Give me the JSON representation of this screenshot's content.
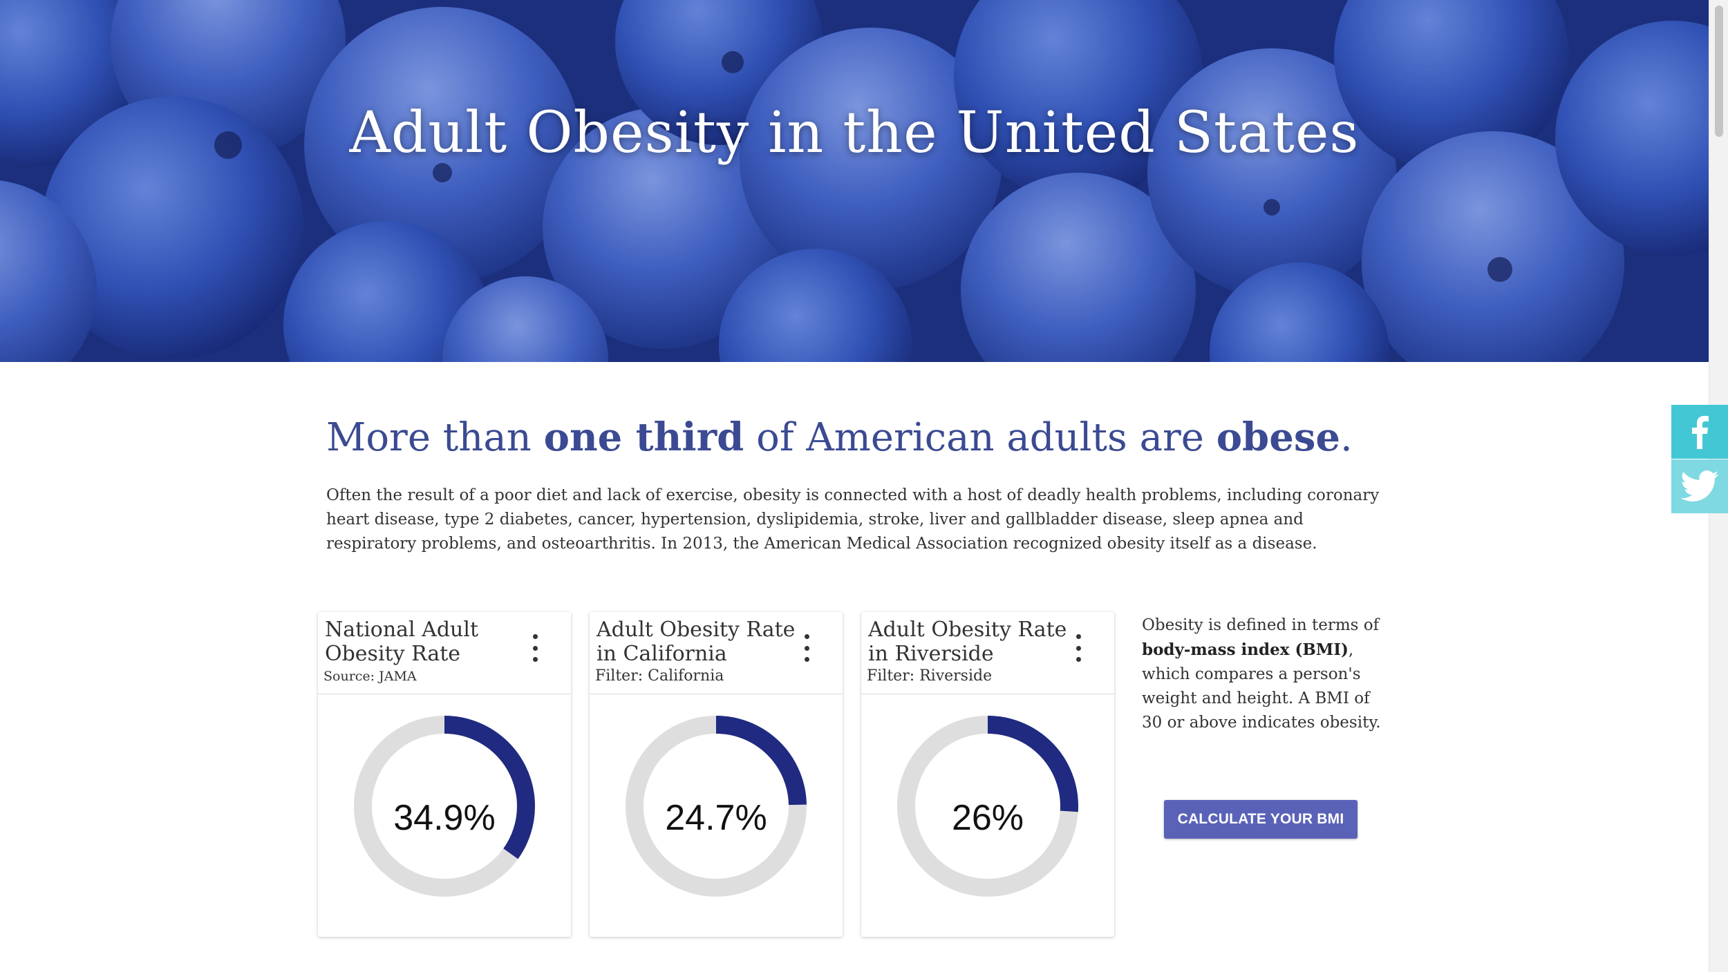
{
  "hero": {
    "title": "Adult Obesity in the United States",
    "image": "blueberries-background"
  },
  "headline": {
    "part1": "More than ",
    "bold1": "one third",
    "part2": " of American adults are ",
    "bold2": "obese",
    "part3": "."
  },
  "intro": {
    "text": "Often the result of a poor diet and lack of exercise, obesity is connected with a host of deadly health problems, including coronary heart disease, type 2 diabetes, cancer, hypertension, dyslipidemia, stroke, liver and gallbladder disease, sleep apnea and respiratory problems, and osteoarthritis. In 2013, the American Medical Association recognized obesity itself as a disease."
  },
  "cards": [
    {
      "title": "National Adult Obesity Rate",
      "subtitle": "Source: JAMA",
      "value_label": "34.9%",
      "value": 34.9
    },
    {
      "title": "Adult Obesity Rate in California",
      "subtitle": "Filter: California",
      "value_label": "24.7%",
      "value": 24.7
    },
    {
      "title": "Adult Obesity Rate in Riverside",
      "subtitle": "Filter: Riverside",
      "value_label": "26%",
      "value": 26
    }
  ],
  "side_info": {
    "pre": "Obesity is defined in terms of ",
    "bold": "body-mass index (BMI)",
    "post": ", which compares a person's weight and height. A BMI of 30 or above indicates obesity."
  },
  "button": {
    "label": "CALCULATE YOUR BMI"
  },
  "social": {
    "facebook_icon": "facebook-icon",
    "twitter_icon": "twitter-icon"
  },
  "colors": {
    "accent": "#1f2a80",
    "track": "#dedede",
    "headline": "#3b4a92",
    "button": "#5a62b8",
    "facebook": "#44c7d4",
    "twitter": "#7fd9e2"
  }
}
